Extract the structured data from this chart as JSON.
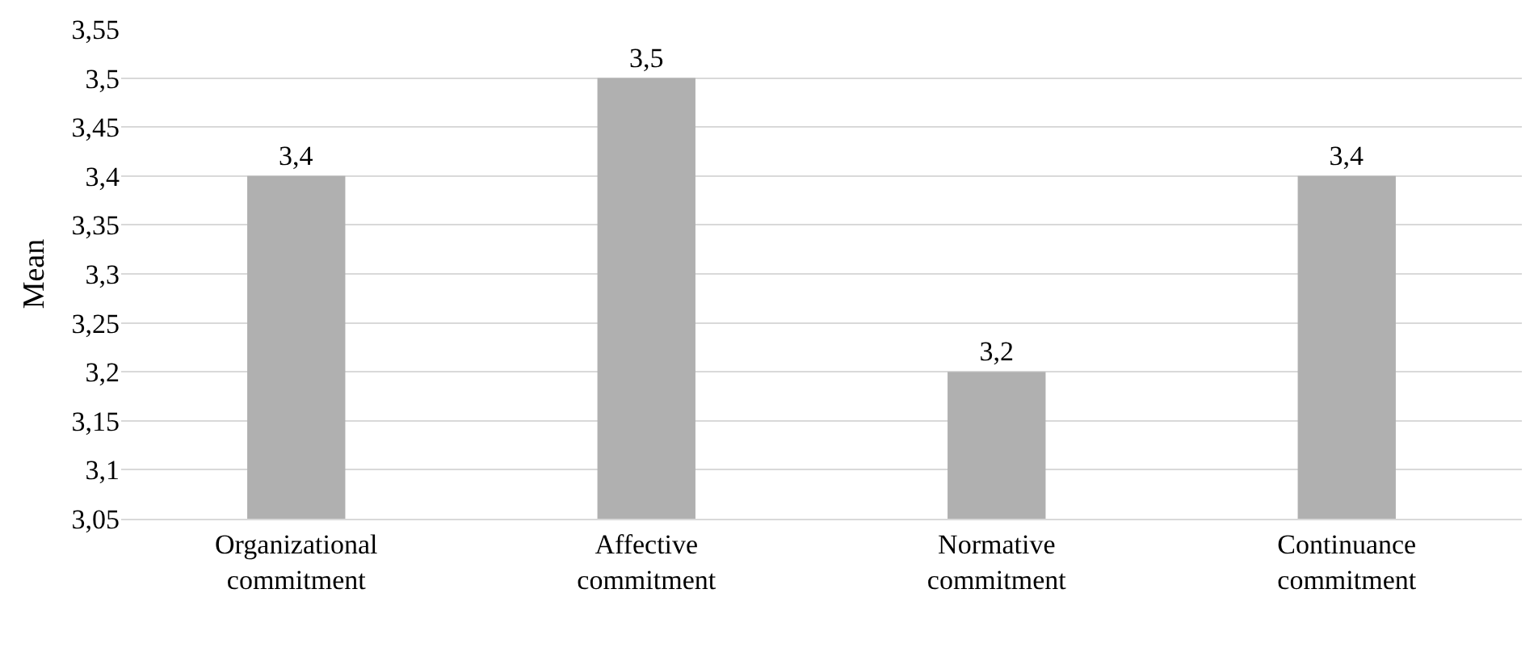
{
  "chart_data": {
    "type": "bar",
    "ylabel": "Mean",
    "categories": [
      "Organizational commitment",
      "Affective commitment",
      "Normative commitment",
      "Continuance commitment"
    ],
    "values": [
      3.4,
      3.5,
      3.2,
      3.4
    ],
    "value_labels": [
      "3,4",
      "3,5",
      "3,2",
      "3,4"
    ],
    "color": "#b0b0b0",
    "ylim": [
      3.05,
      3.55
    ],
    "yticks": [
      {
        "value": 3.05,
        "label": "3,05"
      },
      {
        "value": 3.1,
        "label": "3,1"
      },
      {
        "value": 3.15,
        "label": "3,15"
      },
      {
        "value": 3.2,
        "label": "3,2"
      },
      {
        "value": 3.25,
        "label": "3,25"
      },
      {
        "value": 3.3,
        "label": "3,3"
      },
      {
        "value": 3.35,
        "label": "3,35"
      },
      {
        "value": 3.4,
        "label": "3,4"
      },
      {
        "value": 3.45,
        "label": "3,45"
      },
      {
        "value": 3.5,
        "label": "3,5"
      },
      {
        "value": 3.55,
        "label": "3,55"
      }
    ],
    "grid": "y",
    "legend": false
  }
}
